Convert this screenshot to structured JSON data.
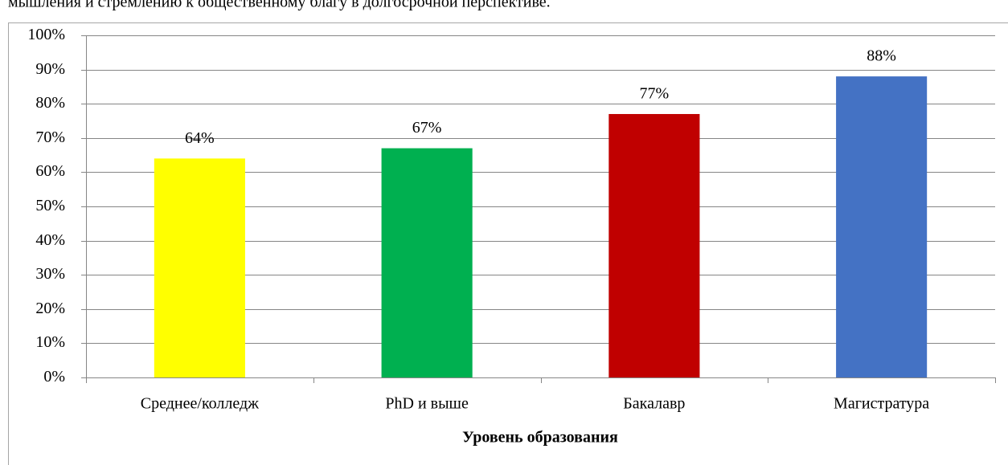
{
  "caption": "мышления и стремлению к общественному благу в долгосрочной перспективе.",
  "chart_data": {
    "type": "bar",
    "x_label": "Уровень образования",
    "categories": [
      "Среднее/колледж",
      "PhD и выше",
      "Бакалавр",
      "Магистратура"
    ],
    "values": [
      64,
      67,
      77,
      88
    ],
    "value_labels": [
      "64%",
      "67%",
      "77%",
      "88%"
    ],
    "colors": [
      "#ffff00",
      "#00b050",
      "#c00000",
      "#4472c4"
    ],
    "ylim": [
      0,
      100
    ],
    "yticks": [
      {
        "value": 0,
        "label": "0%"
      },
      {
        "value": 10,
        "label": "10%"
      },
      {
        "value": 20,
        "label": "20%"
      },
      {
        "value": 30,
        "label": "30%"
      },
      {
        "value": 40,
        "label": "40%"
      },
      {
        "value": 50,
        "label": "50%"
      },
      {
        "value": 60,
        "label": "60%"
      },
      {
        "value": 70,
        "label": "70%"
      },
      {
        "value": 80,
        "label": "80%"
      },
      {
        "value": 90,
        "label": "90%"
      },
      {
        "value": 100,
        "label": "100%"
      }
    ],
    "grid": true
  }
}
